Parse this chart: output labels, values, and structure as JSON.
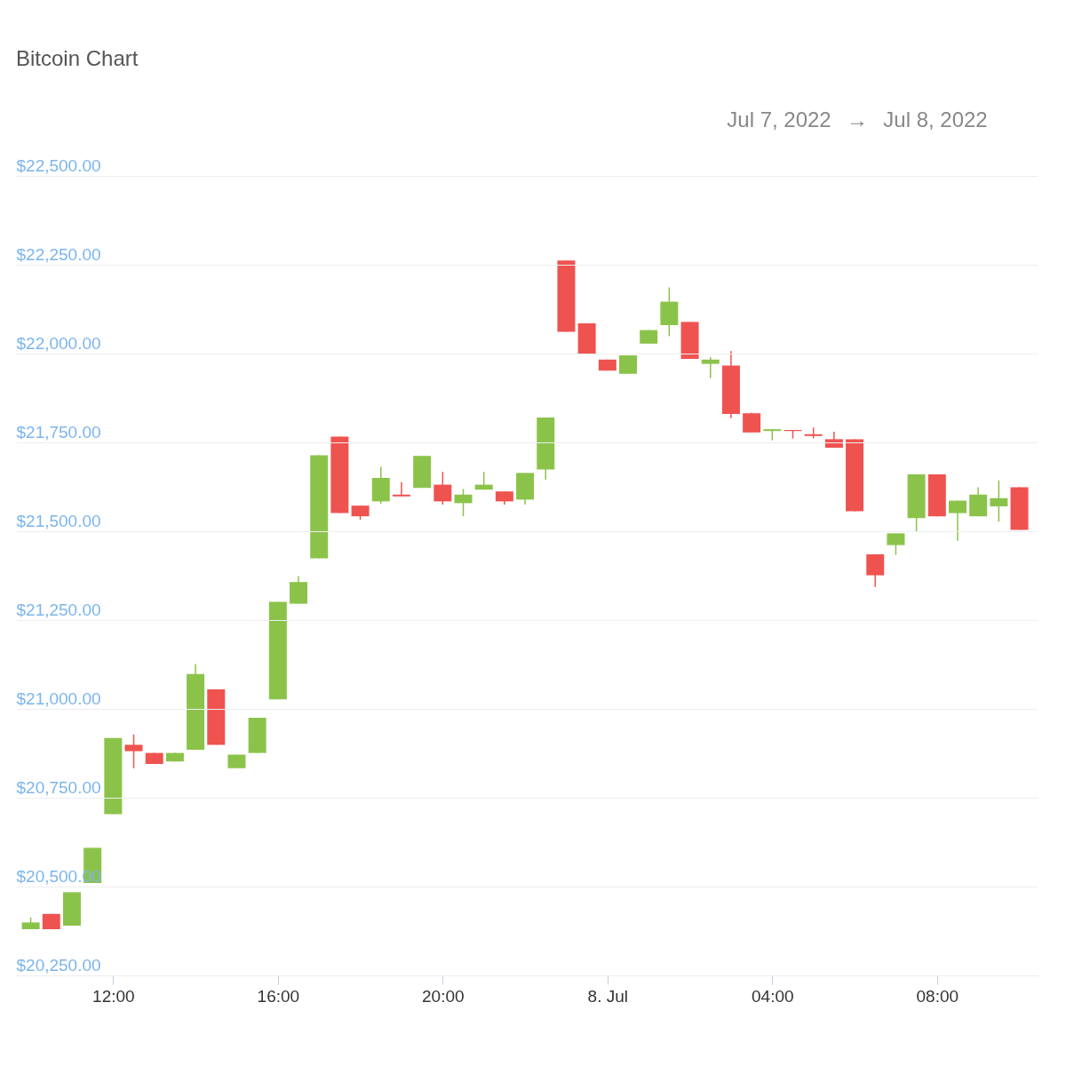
{
  "chart_data": {
    "type": "candlestick",
    "title": "Bitcoin Chart",
    "annotations": [
      "Jul 7, 2022",
      "→",
      "Jul 8, 2022"
    ],
    "x": [
      "2022-07-07T10:00",
      "2022-07-07T10:30",
      "2022-07-07T11:00",
      "2022-07-07T11:30",
      "2022-07-07T12:00",
      "2022-07-07T12:30",
      "2022-07-07T13:00",
      "2022-07-07T13:30",
      "2022-07-07T14:00",
      "2022-07-07T14:30",
      "2022-07-07T15:00",
      "2022-07-07T15:30",
      "2022-07-07T16:00",
      "2022-07-07T16:30",
      "2022-07-07T17:00",
      "2022-07-07T17:30",
      "2022-07-07T18:00",
      "2022-07-07T18:30",
      "2022-07-07T19:00",
      "2022-07-07T19:30",
      "2022-07-07T20:00",
      "2022-07-07T20:30",
      "2022-07-07T21:00",
      "2022-07-07T21:30",
      "2022-07-07T22:00",
      "2022-07-07T22:30",
      "2022-07-07T23:00",
      "2022-07-07T23:30",
      "2022-07-08T00:00",
      "2022-07-08T00:30",
      "2022-07-08T01:00",
      "2022-07-08T01:30",
      "2022-07-08T02:00",
      "2022-07-08T02:30",
      "2022-07-08T03:00",
      "2022-07-08T03:30",
      "2022-07-08T04:00",
      "2022-07-08T04:30",
      "2022-07-08T05:00",
      "2022-07-08T05:30",
      "2022-07-08T06:00",
      "2022-07-08T06:30",
      "2022-07-08T07:00",
      "2022-07-08T07:30",
      "2022-07-08T08:00",
      "2022-07-08T08:30",
      "2022-07-08T09:00",
      "2022-07-08T09:30",
      "2022-07-08T10:00"
    ],
    "ohlc": [
      [
        20380,
        20413,
        20380,
        20399
      ],
      [
        20423,
        20423,
        20380,
        20380
      ],
      [
        20390,
        20484,
        20390,
        20484
      ],
      [
        20510,
        20609,
        20510,
        20609
      ],
      [
        20704,
        20918,
        20704,
        20918
      ],
      [
        20899,
        20928,
        20833,
        20881
      ],
      [
        20876,
        20876,
        20845,
        20845
      ],
      [
        20852,
        20876,
        20852,
        20876
      ],
      [
        20885,
        21126,
        20885,
        21098
      ],
      [
        21055,
        21055,
        20899,
        20899
      ],
      [
        20833,
        20871,
        20833,
        20871
      ],
      [
        20876,
        20975,
        20876,
        20975
      ],
      [
        21027,
        21301,
        21027,
        21301
      ],
      [
        21296,
        21374,
        21296,
        21357
      ],
      [
        21424,
        21714,
        21424,
        21714
      ],
      [
        21766,
        21766,
        21551,
        21551
      ],
      [
        21572,
        21572,
        21532,
        21542
      ],
      [
        21584,
        21681,
        21577,
        21650
      ],
      [
        21603,
        21638,
        21598,
        21598
      ],
      [
        21622,
        21712,
        21622,
        21712
      ],
      [
        21631,
        21667,
        21575,
        21584
      ],
      [
        21579,
        21619,
        21542,
        21603
      ],
      [
        21617,
        21667,
        21617,
        21631
      ],
      [
        21612,
        21612,
        21575,
        21584
      ],
      [
        21589,
        21664,
        21575,
        21664
      ],
      [
        21674,
        21820,
        21645,
        21820
      ],
      [
        22262,
        22262,
        22061,
        22061
      ],
      [
        22085,
        22085,
        22000,
        22000
      ],
      [
        21983,
        21983,
        21952,
        21952
      ],
      [
        21943,
        21995,
        21943,
        21995
      ],
      [
        22028,
        22066,
        22028,
        22066
      ],
      [
        22080,
        22186,
        22049,
        22146
      ],
      [
        22089,
        22089,
        21985,
        21985
      ],
      [
        21971,
        21990,
        21931,
        21983
      ],
      [
        21966,
        22007,
        21818,
        21830
      ],
      [
        21832,
        21834,
        21778,
        21778
      ],
      [
        21782,
        21787,
        21756,
        21787
      ],
      [
        21785,
        21785,
        21761,
        21782
      ],
      [
        21773,
        21792,
        21761,
        21768
      ],
      [
        21759,
        21780,
        21735,
        21735
      ],
      [
        21759,
        21759,
        21556,
        21556
      ],
      [
        21435,
        21435,
        21343,
        21376
      ],
      [
        21461,
        21494,
        21433,
        21494
      ],
      [
        21537,
        21660,
        21497,
        21660
      ],
      [
        21660,
        21660,
        21542,
        21542
      ],
      [
        21551,
        21586,
        21473,
        21586
      ],
      [
        21542,
        21624,
        21542,
        21603
      ],
      [
        21570,
        21643,
        21527,
        21593
      ],
      [
        21624,
        21624,
        21504,
        21504
      ]
    ],
    "colors": [
      "#8bc34a",
      "#ef5350",
      "#8bc34a",
      "#8bc34a",
      "#8bc34a",
      "#ef5350",
      "#ef5350",
      "#8bc34a",
      "#8bc34a",
      "#ef5350",
      "#8bc34a",
      "#8bc34a",
      "#8bc34a",
      "#8bc34a",
      "#8bc34a",
      "#ef5350",
      "#ef5350",
      "#8bc34a",
      "#ef5350",
      "#8bc34a",
      "#ef5350",
      "#8bc34a",
      "#8bc34a",
      "#ef5350",
      "#8bc34a",
      "#8bc34a",
      "#ef5350",
      "#ef5350",
      "#ef5350",
      "#8bc34a",
      "#8bc34a",
      "#8bc34a",
      "#ef5350",
      "#8bc34a",
      "#ef5350",
      "#ef5350",
      "#8bc34a",
      "#ef5350",
      "#ef5350",
      "#ef5350",
      "#ef5350",
      "#ef5350",
      "#8bc34a",
      "#8bc34a",
      "#ef5350",
      "#8bc34a",
      "#8bc34a",
      "#8bc34a",
      "#ef5350"
    ],
    "xlim": [
      "2022-07-07T09:45",
      "2022-07-08T10:20"
    ],
    "xticks": [
      {
        "value": "2022-07-07T12:00",
        "label": "12:00"
      },
      {
        "value": "2022-07-07T16:00",
        "label": "16:00"
      },
      {
        "value": "2022-07-07T20:00",
        "label": "20:00"
      },
      {
        "value": "2022-07-08T00:00",
        "label": "8. Jul"
      },
      {
        "value": "2022-07-08T04:00",
        "label": "04:00"
      },
      {
        "value": "2022-07-08T08:00",
        "label": "08:00"
      }
    ],
    "ylim": [
      20250,
      22500
    ],
    "yticks": [
      {
        "value": 20250,
        "label": "$20,250.00"
      },
      {
        "value": 20500,
        "label": "$20,500.00"
      },
      {
        "value": 20750,
        "label": "$20,750.00"
      },
      {
        "value": 21000,
        "label": "$21,000.00"
      },
      {
        "value": 21250,
        "label": "$21,250.00"
      },
      {
        "value": 21500,
        "label": "$21,500.00"
      },
      {
        "value": 21750,
        "label": "$21,750.00"
      },
      {
        "value": 22000,
        "label": "$22,000.00"
      },
      {
        "value": 22250,
        "label": "$22,250.00"
      },
      {
        "value": 22500,
        "label": "$22,500.00"
      }
    ],
    "grid": "y"
  }
}
